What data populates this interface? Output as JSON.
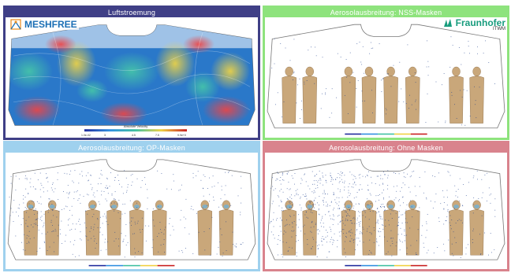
{
  "panels": [
    {
      "title": "Luftstroemung"
    },
    {
      "title": "Aerosolausbreitung: NSS-Masken"
    },
    {
      "title": "Aerosolausbreitung: OP-Masken"
    },
    {
      "title": "Aerosolausbreitung: Ohne Masken"
    }
  ],
  "logos": {
    "meshfree": "MESHFREE",
    "fraunhofer": "Fraunhofer",
    "fraunhofer_sub": "ITWM"
  },
  "legend": {
    "title": "Absolute Velocity",
    "ticks": [
      "1.0e-02",
      "1.5",
      "3",
      "4.5",
      "6",
      "7.5",
      "9.9e+0"
    ]
  },
  "colors": {
    "panel1": "#3f3f86",
    "panel2": "#8ee37d",
    "panel3": "#9fd1ee",
    "panel4": "#d9838d",
    "figure": "#c9a77a",
    "particles": "#1a3c8c"
  },
  "icons": {
    "meshfree": "meshfree-logo-icon",
    "fraunhofer": "fraunhofer-logo-icon"
  }
}
